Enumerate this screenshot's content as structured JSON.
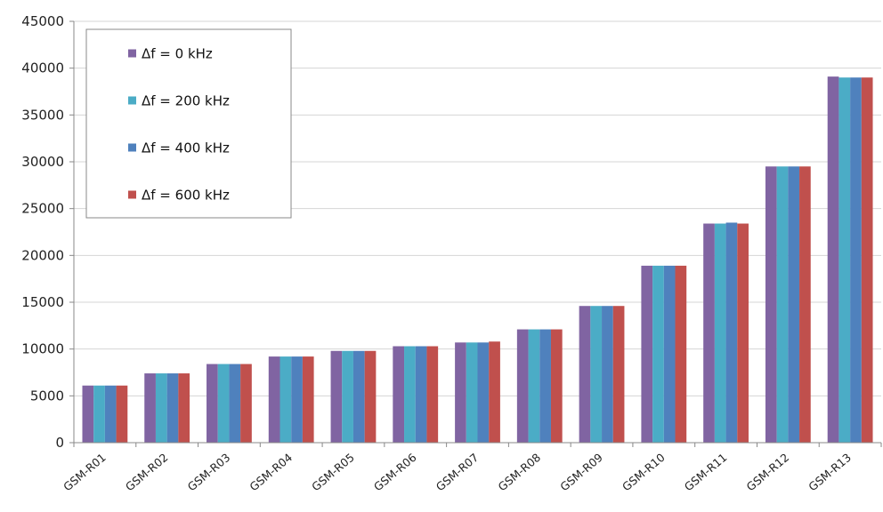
{
  "chart_data": {
    "type": "bar",
    "title": "",
    "xlabel": "",
    "ylabel": "",
    "ylim": [
      0,
      45000
    ],
    "yticks": [
      "0",
      "5000",
      "10000",
      "15000",
      "20000",
      "25000",
      "30000",
      "35000",
      "40000",
      "45000"
    ],
    "grid": "horizontal",
    "legend_position": "top-left",
    "categories": [
      "GSM-R01",
      "GSM-R02",
      "GSM-R03",
      "GSM-R04",
      "GSM-R05",
      "GSM-R06",
      "GSM-R07",
      "GSM-R08",
      "GSM-R09",
      "GSM-R10",
      "GSM-R11",
      "GSM-R12",
      "GSM-R13"
    ],
    "series": [
      {
        "name": "Δf = 0 kHz",
        "color": "#8064A2",
        "values": [
          6100,
          7400,
          8400,
          9200,
          9800,
          10300,
          10700,
          12100,
          14600,
          18900,
          23400,
          29500,
          39100
        ]
      },
      {
        "name": "Δf = 200 kHz",
        "color": "#4BACC6",
        "values": [
          6100,
          7400,
          8400,
          9200,
          9800,
          10300,
          10700,
          12100,
          14600,
          18900,
          23400,
          29500,
          39000
        ]
      },
      {
        "name": "Δf = 400 kHz",
        "color": "#4F81BD",
        "values": [
          6100,
          7400,
          8400,
          9200,
          9800,
          10300,
          10700,
          12100,
          14600,
          18900,
          23500,
          29500,
          39000
        ]
      },
      {
        "name": "Δf = 600 kHz",
        "color": "#C0504D",
        "values": [
          6100,
          7400,
          8400,
          9200,
          9800,
          10300,
          10800,
          12100,
          14600,
          18900,
          23400,
          29500,
          39000
        ]
      }
    ]
  }
}
